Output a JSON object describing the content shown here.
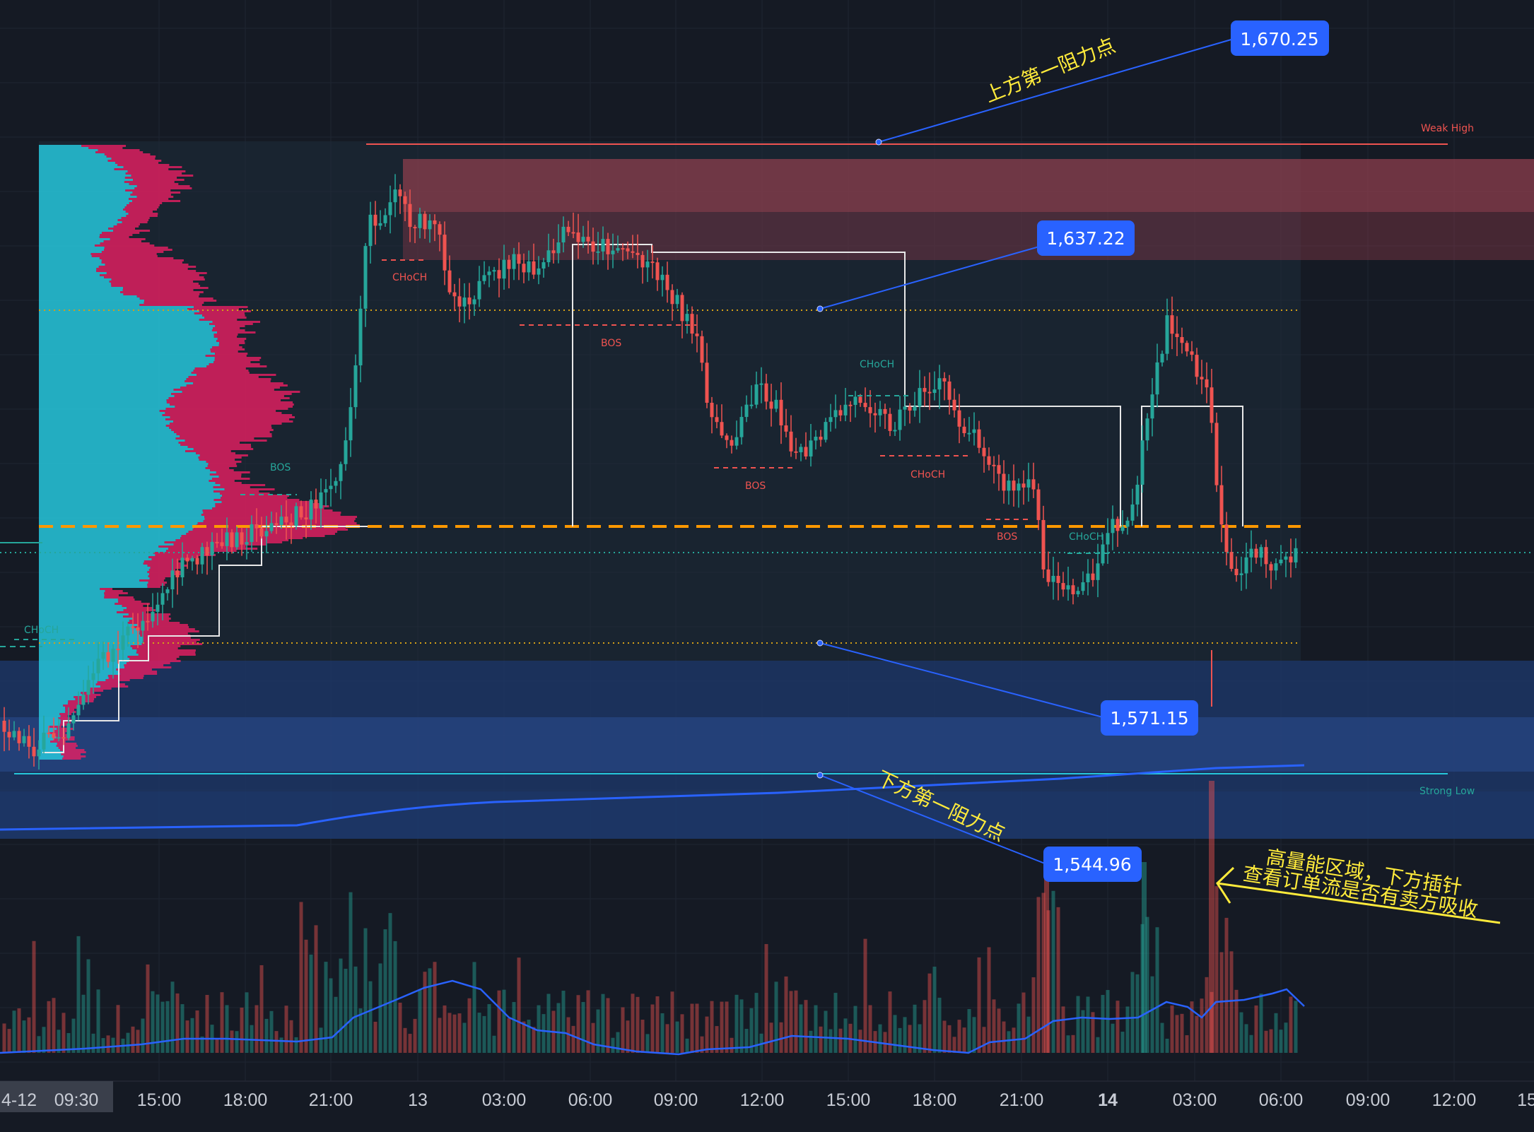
{
  "chart_data": {
    "type": "candlestick",
    "x_ticks": [
      "4-12",
      "09:30",
      "15:00",
      "18:00",
      "21:00",
      "13",
      "03:00",
      "06:00",
      "09:00",
      "12:00",
      "15:00",
      "18:00",
      "21:00",
      "14",
      "03:00",
      "06:00",
      "09:00",
      "12:00",
      "15"
    ],
    "price_callouts": [
      {
        "value": "1,670.25"
      },
      {
        "value": "1,637.22"
      },
      {
        "value": "1,571.15"
      },
      {
        "value": "1,544.96"
      }
    ],
    "structure_labels": {
      "choch": "CHoCH",
      "bos": "BOS",
      "weak_high": "Weak High",
      "strong_low": "Strong Low"
    },
    "annotations": {
      "upper_resistance": "上方第一阻力点",
      "lower_resistance": "下方第一阻力点",
      "note_line1": "高量能区域，下方插针",
      "note_line2": "查看订单流是否有卖方吸收"
    },
    "colors": {
      "background": "#151a24",
      "up": "#26a69a",
      "down": "#ef5350",
      "callout": "#2962ff",
      "poc": "#ff9800",
      "profile_buy": "#26c6da",
      "profile_sell": "#e91e63",
      "annotation": "#ffeb3b"
    }
  }
}
